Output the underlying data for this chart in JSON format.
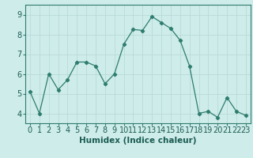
{
  "x": [
    0,
    1,
    2,
    3,
    4,
    5,
    6,
    7,
    8,
    9,
    10,
    11,
    12,
    13,
    14,
    15,
    16,
    17,
    18,
    19,
    20,
    21,
    22,
    23
  ],
  "y": [
    5.1,
    4.0,
    6.0,
    5.2,
    5.7,
    6.6,
    6.6,
    6.4,
    5.5,
    6.0,
    7.5,
    8.25,
    8.2,
    8.9,
    8.6,
    8.3,
    7.7,
    6.4,
    4.0,
    4.1,
    3.8,
    4.8,
    4.1,
    3.9
  ],
  "line_color": "#2e7d6e",
  "marker": "D",
  "marker_size": 2.2,
  "bg_color": "#ceecea",
  "grid_color": "#b8dbd8",
  "xlabel": "Humidex (Indice chaleur)",
  "xlabel_fontsize": 7.5,
  "tick_fontsize": 7,
  "ylim": [
    3.5,
    9.5
  ],
  "xlim": [
    -0.5,
    23.5
  ],
  "yticks": [
    4,
    5,
    6,
    7,
    8,
    9
  ],
  "xticks": [
    0,
    1,
    2,
    3,
    4,
    5,
    6,
    7,
    8,
    9,
    10,
    11,
    12,
    13,
    14,
    15,
    16,
    17,
    18,
    19,
    20,
    21,
    22,
    23
  ]
}
